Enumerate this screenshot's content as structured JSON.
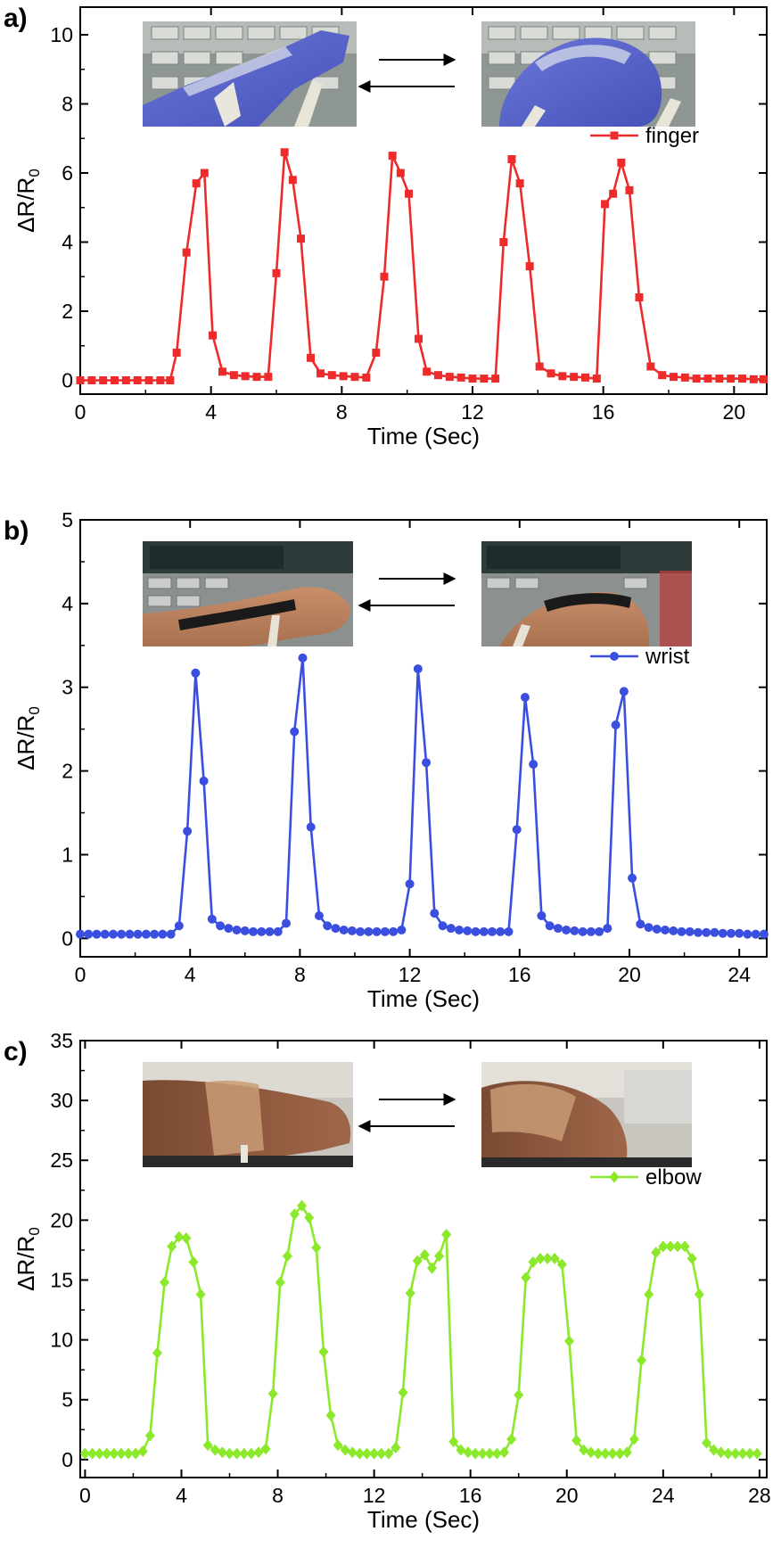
{
  "chart_data": [
    {
      "type": "line",
      "panel": "a)",
      "xlabel": "Time (Sec)",
      "ylabel": "ΔR/R",
      "ylabel_sub": "0",
      "xlim": [
        0,
        21
      ],
      "ylim": [
        -0.4,
        10.8
      ],
      "xticks": [
        0,
        4,
        8,
        12,
        16,
        20
      ],
      "yticks": [
        0,
        2,
        4,
        6,
        8,
        10
      ],
      "color": "#ee2b2b",
      "marker": "square",
      "legend_position": "top-right",
      "inset_photos": [
        "finger-straight-photo",
        "finger-bent-photo"
      ],
      "series": [
        {
          "name": "finger",
          "x": [
            0,
            0.35,
            0.7,
            1.05,
            1.4,
            1.75,
            2.1,
            2.45,
            2.75,
            2.95,
            3.25,
            3.55,
            3.8,
            4.05,
            4.35,
            4.7,
            5.05,
            5.4,
            5.75,
            6.0,
            6.25,
            6.5,
            6.75,
            7.05,
            7.35,
            7.7,
            8.05,
            8.4,
            8.75,
            9.05,
            9.3,
            9.55,
            9.8,
            10.05,
            10.35,
            10.6,
            10.95,
            11.3,
            11.65,
            12.0,
            12.35,
            12.7,
            12.95,
            13.2,
            13.45,
            13.75,
            14.05,
            14.4,
            14.75,
            15.1,
            15.45,
            15.8,
            16.05,
            16.3,
            16.55,
            16.8,
            17.1,
            17.45,
            17.8,
            18.15,
            18.5,
            18.85,
            19.2,
            19.55,
            19.9,
            20.25,
            20.6,
            20.9
          ],
          "y": [
            0,
            0,
            0,
            0,
            0,
            0,
            0,
            0,
            0,
            0.8,
            3.7,
            5.7,
            6.0,
            1.3,
            0.25,
            0.15,
            0.12,
            0.1,
            0.1,
            3.1,
            6.6,
            5.8,
            4.1,
            0.65,
            0.2,
            0.15,
            0.12,
            0.1,
            0.08,
            0.8,
            3.0,
            6.5,
            6.0,
            5.4,
            1.2,
            0.25,
            0.15,
            0.1,
            0.08,
            0.05,
            0.05,
            0.05,
            4.0,
            6.4,
            5.7,
            3.3,
            0.4,
            0.2,
            0.12,
            0.1,
            0.08,
            0.05,
            5.1,
            5.4,
            6.3,
            5.5,
            2.4,
            0.4,
            0.15,
            0.1,
            0.08,
            0.05,
            0.05,
            0.05,
            0.05,
            0.05,
            0.03,
            0.03
          ]
        }
      ]
    },
    {
      "type": "line",
      "panel": "b)",
      "xlabel": "Time (Sec)",
      "ylabel": "ΔR/R",
      "ylabel_sub": "0",
      "xlim": [
        0,
        25
      ],
      "ylim": [
        -0.22,
        5.0
      ],
      "xticks": [
        0,
        4,
        8,
        12,
        16,
        20,
        24
      ],
      "yticks": [
        0,
        1,
        2,
        3,
        4,
        5
      ],
      "color": "#3a4fe0",
      "marker": "circle",
      "legend_position": "top-right",
      "inset_photos": [
        "wrist-straight-photo",
        "wrist-bent-photo"
      ],
      "series": [
        {
          "name": "wrist",
          "x": [
            0,
            0.3,
            0.6,
            0.9,
            1.2,
            1.5,
            1.8,
            2.1,
            2.4,
            2.7,
            3.0,
            3.3,
            3.6,
            3.9,
            4.2,
            4.5,
            4.8,
            5.1,
            5.4,
            5.7,
            6.0,
            6.3,
            6.6,
            6.9,
            7.2,
            7.5,
            7.8,
            8.1,
            8.4,
            8.7,
            9.0,
            9.3,
            9.6,
            9.9,
            10.2,
            10.5,
            10.8,
            11.1,
            11.4,
            11.7,
            12.0,
            12.3,
            12.6,
            12.9,
            13.2,
            13.5,
            13.8,
            14.1,
            14.4,
            14.7,
            15.0,
            15.3,
            15.6,
            15.9,
            16.2,
            16.5,
            16.8,
            17.1,
            17.4,
            17.7,
            18.0,
            18.3,
            18.6,
            18.9,
            19.2,
            19.5,
            19.8,
            20.1,
            20.4,
            20.7,
            21.0,
            21.3,
            21.6,
            21.9,
            22.2,
            22.5,
            22.8,
            23.1,
            23.4,
            23.7,
            24.0,
            24.3,
            24.6,
            24.9
          ],
          "y": [
            0.05,
            0.05,
            0.05,
            0.05,
            0.05,
            0.05,
            0.05,
            0.05,
            0.05,
            0.05,
            0.05,
            0.05,
            0.15,
            1.28,
            3.17,
            1.88,
            0.23,
            0.15,
            0.12,
            0.1,
            0.09,
            0.08,
            0.08,
            0.08,
            0.08,
            0.18,
            2.47,
            3.35,
            1.33,
            0.27,
            0.15,
            0.12,
            0.1,
            0.09,
            0.08,
            0.08,
            0.08,
            0.08,
            0.08,
            0.1,
            0.65,
            3.22,
            2.1,
            0.3,
            0.15,
            0.12,
            0.1,
            0.09,
            0.08,
            0.08,
            0.08,
            0.08,
            0.08,
            1.3,
            2.88,
            2.08,
            0.27,
            0.15,
            0.12,
            0.1,
            0.09,
            0.08,
            0.08,
            0.08,
            0.12,
            2.55,
            2.95,
            0.72,
            0.17,
            0.13,
            0.11,
            0.1,
            0.09,
            0.08,
            0.08,
            0.07,
            0.07,
            0.07,
            0.06,
            0.06,
            0.06,
            0.05,
            0.05,
            0.05
          ]
        }
      ]
    },
    {
      "type": "line",
      "panel": "c)",
      "xlabel": "Time (Sec)",
      "ylabel": "ΔR/R",
      "ylabel_sub": "0",
      "xlim": [
        -0.2,
        28.3
      ],
      "ylim": [
        -1.5,
        35.0
      ],
      "xticks": [
        0,
        4,
        8,
        12,
        16,
        20,
        24,
        28
      ],
      "yticks": [
        0,
        5,
        10,
        15,
        20,
        25,
        30,
        35
      ],
      "color": "#8be82a",
      "marker": "diamond",
      "legend_position": "top-right",
      "inset_photos": [
        "elbow-straight-photo",
        "elbow-bent-photo"
      ],
      "series": [
        {
          "name": "elbow",
          "x": [
            0,
            0.3,
            0.6,
            0.9,
            1.2,
            1.5,
            1.8,
            2.1,
            2.4,
            2.7,
            3.0,
            3.3,
            3.6,
            3.9,
            4.2,
            4.5,
            4.8,
            5.1,
            5.4,
            5.7,
            6.0,
            6.3,
            6.6,
            6.9,
            7.2,
            7.5,
            7.8,
            8.1,
            8.4,
            8.7,
            9.0,
            9.3,
            9.6,
            9.9,
            10.2,
            10.5,
            10.8,
            11.1,
            11.4,
            11.7,
            12.0,
            12.3,
            12.6,
            12.9,
            13.2,
            13.5,
            13.8,
            14.1,
            14.4,
            14.7,
            15.0,
            15.3,
            15.6,
            15.9,
            16.2,
            16.5,
            16.8,
            17.1,
            17.4,
            17.7,
            18.0,
            18.3,
            18.6,
            18.9,
            19.2,
            19.5,
            19.8,
            20.1,
            20.4,
            20.7,
            21.0,
            21.3,
            21.6,
            21.9,
            22.2,
            22.5,
            22.8,
            23.1,
            23.4,
            23.7,
            24.0,
            24.3,
            24.6,
            24.9,
            25.2,
            25.5,
            25.8,
            26.1,
            26.4,
            26.7,
            27.0,
            27.3,
            27.6,
            27.9
          ],
          "y": [
            0.5,
            0.5,
            0.5,
            0.5,
            0.5,
            0.5,
            0.5,
            0.5,
            0.7,
            2.0,
            8.9,
            14.8,
            17.8,
            18.6,
            18.5,
            16.5,
            13.8,
            1.2,
            0.8,
            0.6,
            0.5,
            0.5,
            0.5,
            0.5,
            0.6,
            0.9,
            5.5,
            14.8,
            17.0,
            20.5,
            21.2,
            20.2,
            17.7,
            9.0,
            3.7,
            1.2,
            0.8,
            0.6,
            0.5,
            0.5,
            0.5,
            0.5,
            0.5,
            1.0,
            5.6,
            13.9,
            16.6,
            17.1,
            16.0,
            17.0,
            18.8,
            1.5,
            0.8,
            0.6,
            0.5,
            0.5,
            0.5,
            0.5,
            0.6,
            1.7,
            5.4,
            15.2,
            16.5,
            16.8,
            16.8,
            16.8,
            16.3,
            9.9,
            1.6,
            0.8,
            0.6,
            0.5,
            0.5,
            0.5,
            0.5,
            0.6,
            1.7,
            8.3,
            13.8,
            17.3,
            17.8,
            17.8,
            17.8,
            17.8,
            16.8,
            13.8,
            1.4,
            0.8,
            0.6,
            0.5,
            0.5,
            0.5,
            0.5,
            0.5
          ]
        }
      ]
    }
  ]
}
